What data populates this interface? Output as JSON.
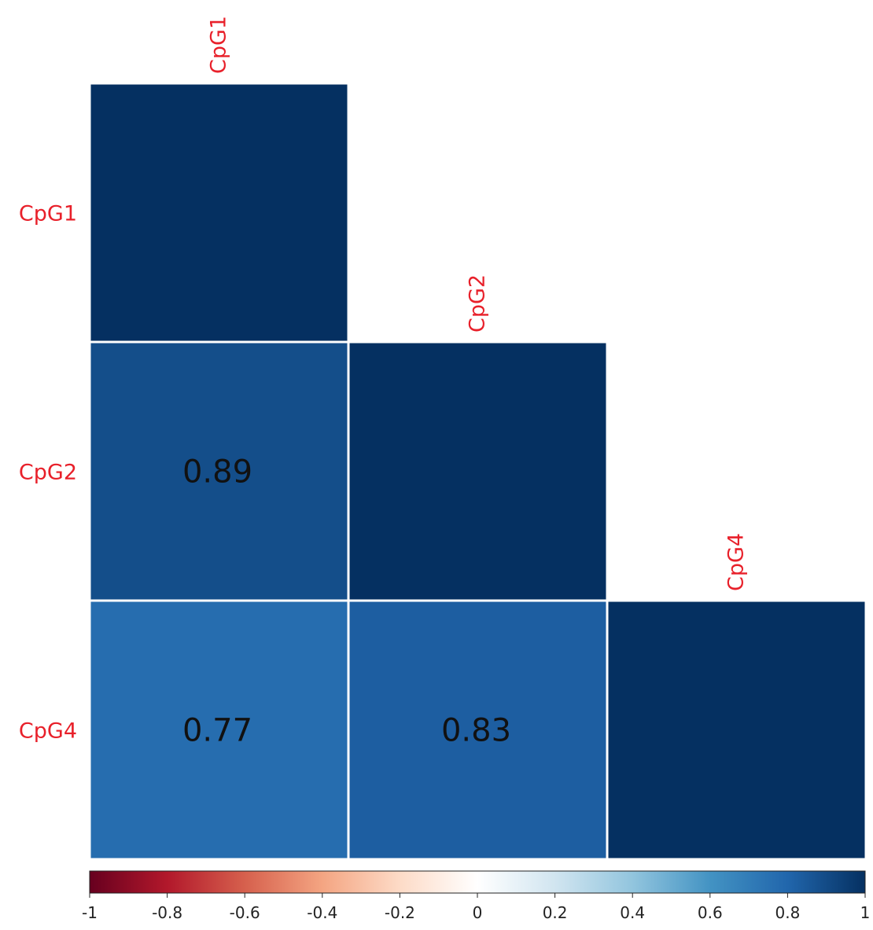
{
  "chart_data": {
    "type": "heatmap",
    "variables": [
      "CpG1",
      "CpG2",
      "CpG4"
    ],
    "layout": "lower-triangle",
    "matrix": [
      [
        1,
        null,
        null
      ],
      [
        0.89,
        1,
        null
      ],
      [
        0.77,
        0.83,
        1
      ]
    ],
    "cell_labels": [
      [
        "",
        "",
        ""
      ],
      [
        "0.89",
        "",
        ""
      ],
      [
        "0.77",
        "0.83",
        ""
      ]
    ],
    "label_color": "#e8202a",
    "colorbar": {
      "range": [
        -1,
        1
      ],
      "ticks": [
        "-1",
        "-0.8",
        "-0.6",
        "-0.4",
        "-0.2",
        "0",
        "0.2",
        "0.4",
        "0.6",
        "0.8",
        "1"
      ],
      "palette": [
        "#67001f",
        "#b2182b",
        "#d6604d",
        "#f4a582",
        "#fddbc7",
        "#ffffff",
        "#d1e5f0",
        "#92c5de",
        "#4393c3",
        "#2166ac",
        "#053061"
      ]
    }
  }
}
